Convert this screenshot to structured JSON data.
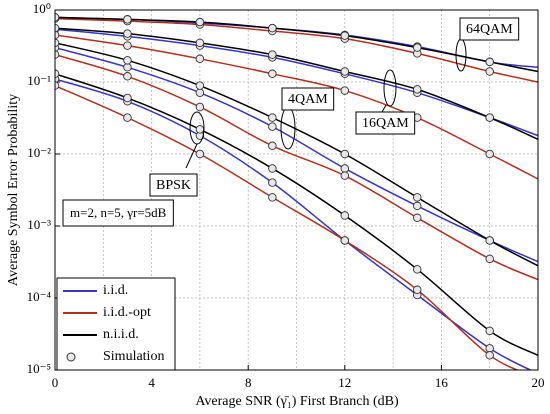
{
  "chart_data": {
    "type": "line",
    "x_label": "Average SNR (γ̄₁) First Branch (dB)",
    "y_label": "Average Symbol Error Probability",
    "log_y": true,
    "grid": true,
    "legend_position": "lower left",
    "xlim": [
      0,
      20
    ],
    "ylim": [
      1e-05,
      1
    ],
    "xticks": [
      0,
      4,
      8,
      12,
      16,
      20
    ],
    "xminorticks": [
      2,
      6,
      10,
      14,
      18
    ],
    "yticks": [
      {
        "value": 1,
        "label": "10⁰"
      },
      {
        "value": 0.1,
        "label": "10⁻¹"
      },
      {
        "value": 0.01,
        "label": "10⁻²"
      },
      {
        "value": 0.001,
        "label": "10⁻³"
      },
      {
        "value": 0.0001,
        "label": "10⁻⁴"
      },
      {
        "value": 1e-05,
        "label": "10⁻⁵"
      }
    ],
    "x": [
      0,
      3,
      6,
      9,
      12,
      15,
      18,
      20
    ],
    "annotations": [
      {
        "text": "BPSK"
      },
      {
        "text": "4QAM"
      },
      {
        "text": "16QAM"
      },
      {
        "text": "64QAM"
      }
    ],
    "parameters": "m=2, n=5, γr=5dB",
    "series": [
      {
        "name": "i.i.d.",
        "color": "#3535c8",
        "curves": [
          [
            0.11,
            0.054,
            0.018,
            0.004,
            0.00063,
            0.00011,
            2e-05,
            8.9e-06
          ],
          [
            0.3,
            0.16,
            0.071,
            0.024,
            0.0063,
            0.0019,
            0.00063,
            0.00032
          ],
          [
            0.54,
            0.43,
            0.32,
            0.22,
            0.13,
            0.071,
            0.032,
            0.018
          ],
          [
            0.79,
            0.74,
            0.66,
            0.56,
            0.45,
            0.31,
            0.19,
            0.16
          ]
        ]
      },
      {
        "name": "i.i.d.-opt",
        "color": "#b0301c",
        "curves": [
          [
            0.089,
            0.032,
            0.01,
            0.0025,
            0.00063,
            0.00013,
            1.6e-05,
            7.9e-06
          ],
          [
            0.24,
            0.12,
            0.045,
            0.013,
            0.005,
            0.0013,
            0.00035,
            0.00018
          ],
          [
            0.45,
            0.32,
            0.21,
            0.13,
            0.076,
            0.032,
            0.01,
            0.0045
          ],
          [
            0.76,
            0.7,
            0.63,
            0.51,
            0.4,
            0.25,
            0.14,
            0.1
          ]
        ]
      },
      {
        "name": "n.i.i.d.",
        "color": "#000000",
        "curves": [
          [
            0.13,
            0.06,
            0.022,
            0.0063,
            0.0014,
            0.00025,
            3.5e-05,
            1.6e-05
          ],
          [
            0.35,
            0.2,
            0.089,
            0.032,
            0.01,
            0.0025,
            0.00063,
            0.00028
          ],
          [
            0.56,
            0.47,
            0.35,
            0.24,
            0.14,
            0.079,
            0.032,
            0.016
          ],
          [
            0.79,
            0.74,
            0.68,
            0.56,
            0.44,
            0.3,
            0.19,
            0.14
          ]
        ]
      }
    ],
    "simulation": {
      "name": "Simulation",
      "x": [
        0,
        3,
        6,
        9,
        12,
        15,
        18
      ]
    }
  }
}
